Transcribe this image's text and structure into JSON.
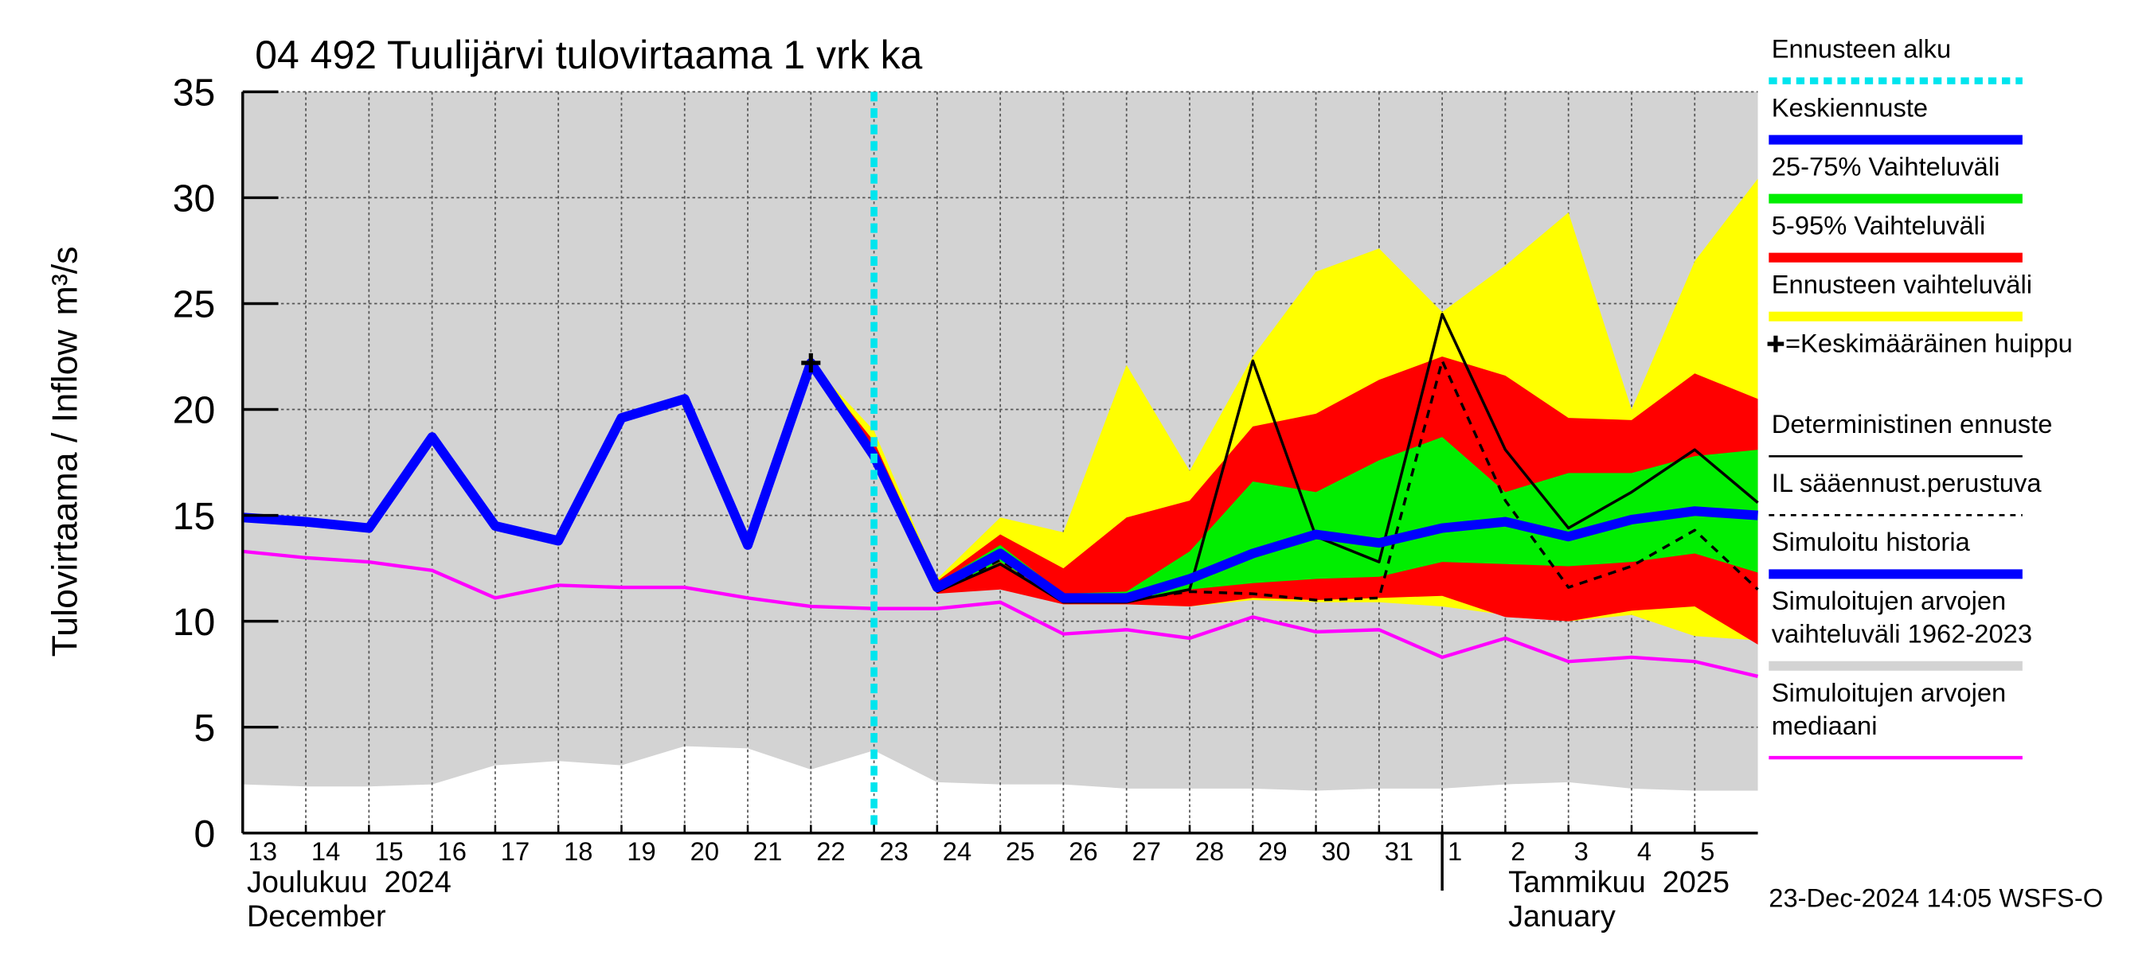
{
  "chart_data": {
    "type": "forecast",
    "title": "04 492 Tuulijärvi tulovirtaama 1 vrk ka",
    "y_label": "Tulovirtaama / Inflow",
    "y_unit": "m³/s",
    "month_labels": [
      "Joulukuu  2024",
      "December",
      "Tammikuu  2025",
      "January"
    ],
    "footer": "23-Dec-2024 14:05 WSFS-O",
    "xlim": [
      0,
      24
    ],
    "ylim": [
      0,
      35
    ],
    "yticks": [
      0,
      5,
      10,
      15,
      20,
      25,
      30,
      35
    ],
    "grid": true,
    "xticks": [
      {
        "value": 0,
        "label": "13"
      },
      {
        "value": 1,
        "label": "14"
      },
      {
        "value": 2,
        "label": "15"
      },
      {
        "value": 3,
        "label": "16"
      },
      {
        "value": 4,
        "label": "17"
      },
      {
        "value": 5,
        "label": "18"
      },
      {
        "value": 6,
        "label": "19"
      },
      {
        "value": 7,
        "label": "20"
      },
      {
        "value": 8,
        "label": "21"
      },
      {
        "value": 9,
        "label": "22"
      },
      {
        "value": 10,
        "label": "23"
      },
      {
        "value": 11,
        "label": "24"
      },
      {
        "value": 12,
        "label": "25"
      },
      {
        "value": 13,
        "label": "26"
      },
      {
        "value": 14,
        "label": "27"
      },
      {
        "value": 15,
        "label": "28"
      },
      {
        "value": 16,
        "label": "29"
      },
      {
        "value": 17,
        "label": "30"
      },
      {
        "value": 18,
        "label": "31"
      },
      {
        "value": 19,
        "label": "1"
      },
      {
        "value": 20,
        "label": "2"
      },
      {
        "value": 21,
        "label": "3"
      },
      {
        "value": 22,
        "label": "4"
      },
      {
        "value": 23,
        "label": "5"
      }
    ],
    "x": [
      0,
      1,
      2,
      3,
      4,
      5,
      6,
      7,
      8,
      9,
      10,
      11,
      12,
      13,
      14,
      15,
      16,
      17,
      18,
      19,
      20,
      21,
      22,
      23,
      24
    ],
    "series": [
      {
        "name": "Ennusteen alku",
        "style": "vline",
        "color": "#00e5ee",
        "at": 10
      },
      {
        "name": "Keskiennuste",
        "style": "thick",
        "color": "#0000ff",
        "values": [
          null,
          null,
          null,
          null,
          null,
          null,
          null,
          null,
          null,
          null,
          17.8,
          11.6,
          13.2,
          11.1,
          11.1,
          12.0,
          13.2,
          14.1,
          13.7,
          14.4,
          14.7,
          14.0,
          14.8,
          15.2,
          15.0
        ]
      },
      {
        "name": "25-75% Vaihteluväli",
        "style": "band",
        "color": "#00ee00",
        "values": [
          null,
          null,
          null,
          null,
          null,
          null,
          null,
          null,
          null,
          null,
          18.0,
          11.8,
          13.6,
          11.3,
          11.4,
          13.3,
          16.6,
          16.1,
          17.6,
          18.7,
          16.1,
          17.0,
          17.0,
          17.8,
          18.1
        ],
        "lower": [
          null,
          null,
          null,
          null,
          null,
          null,
          null,
          null,
          null,
          null,
          17.8,
          11.4,
          12.8,
          11.0,
          11.0,
          11.5,
          11.8,
          12.0,
          12.1,
          12.8,
          12.7,
          12.6,
          12.8,
          13.2,
          12.3
        ]
      },
      {
        "name": "5-95% Vaihteluväli",
        "style": "band",
        "color": "#ff0000",
        "values": [
          null,
          null,
          null,
          null,
          null,
          null,
          null,
          null,
          null,
          22.2,
          18.5,
          11.9,
          14.1,
          12.5,
          14.9,
          15.7,
          19.2,
          19.8,
          21.4,
          22.5,
          21.6,
          19.6,
          19.5,
          21.7,
          20.5
        ],
        "lower": [
          null,
          null,
          null,
          null,
          null,
          null,
          null,
          null,
          null,
          22.2,
          17.6,
          11.3,
          11.5,
          10.8,
          10.8,
          10.7,
          11.1,
          11.0,
          11.1,
          11.2,
          10.2,
          10.0,
          10.5,
          10.7,
          8.9
        ]
      },
      {
        "name": "Ennusteen vaihteluväli",
        "style": "band",
        "color": "#ffff00",
        "values": [
          null,
          null,
          null,
          null,
          null,
          null,
          null,
          null,
          null,
          22.2,
          19.0,
          12.0,
          14.9,
          14.2,
          22.1,
          17.1,
          22.5,
          26.5,
          27.6,
          24.6,
          26.8,
          29.3,
          20.0,
          27.0,
          30.9
        ],
        "lower": [
          null,
          null,
          null,
          null,
          null,
          null,
          null,
          null,
          null,
          22.2,
          17.5,
          11.3,
          11.7,
          10.8,
          10.8,
          10.7,
          11.0,
          10.9,
          10.9,
          10.7,
          10.3,
          10.0,
          10.3,
          9.3,
          9.1
        ]
      },
      {
        "name": "=Keskimääräinen huippu",
        "style": "marker",
        "color": "#000000",
        "at": 9,
        "value": 22.2
      },
      {
        "name": "Deterministinen ennuste",
        "style": "thin",
        "color": "#000000",
        "values": [
          null,
          null,
          null,
          null,
          null,
          null,
          null,
          null,
          null,
          22.2,
          18.0,
          11.4,
          12.7,
          10.9,
          10.9,
          11.5,
          22.3,
          14.0,
          12.8,
          24.5,
          18.1,
          14.4,
          16.1,
          18.1,
          15.6
        ]
      },
      {
        "name": "IL sääennust.perustuva",
        "style": "dashed",
        "color": "#000000",
        "values": [
          null,
          null,
          null,
          null,
          null,
          null,
          null,
          null,
          null,
          null,
          17.8,
          11.4,
          12.9,
          10.9,
          11.0,
          11.4,
          11.3,
          11.0,
          11.1,
          22.3,
          15.7,
          11.6,
          12.6,
          14.3,
          11.5
        ]
      },
      {
        "name": "Simuloitu historia",
        "style": "thick",
        "color": "#0000ff",
        "values": [
          14.9,
          14.7,
          14.4,
          18.7,
          14.5,
          13.8,
          19.6,
          20.5,
          13.6,
          22.2,
          17.8,
          null,
          null,
          null,
          null,
          null,
          null,
          null,
          null,
          null,
          null,
          null,
          null,
          null,
          null
        ]
      },
      {
        "name": "Simuloitujen arvojen vaihteluväli 1962-2023",
        "style": "band",
        "color": "#d3d3d3",
        "values": [
          35,
          35,
          35,
          35,
          35,
          35,
          35,
          35,
          35,
          35,
          35,
          35,
          35,
          35,
          35,
          35,
          35,
          35,
          35,
          35,
          35,
          35,
          35,
          35,
          35
        ],
        "lower": [
          2.3,
          2.2,
          2.2,
          2.3,
          3.2,
          3.4,
          3.2,
          4.1,
          4.0,
          3.0,
          3.9,
          2.4,
          2.3,
          2.3,
          2.1,
          2.1,
          2.1,
          2.0,
          2.1,
          2.1,
          2.3,
          2.4,
          2.1,
          2.0,
          2.0
        ]
      },
      {
        "name": "Simuloitujen arvojen mediaani",
        "style": "median",
        "color": "#ff00ff",
        "values": [
          13.3,
          13.0,
          12.8,
          12.4,
          11.1,
          11.7,
          11.6,
          11.6,
          11.1,
          10.7,
          10.6,
          10.6,
          10.9,
          9.4,
          9.6,
          9.2,
          10.2,
          9.5,
          9.6,
          8.3,
          9.2,
          8.1,
          8.3,
          8.1,
          7.4
        ]
      }
    ]
  }
}
